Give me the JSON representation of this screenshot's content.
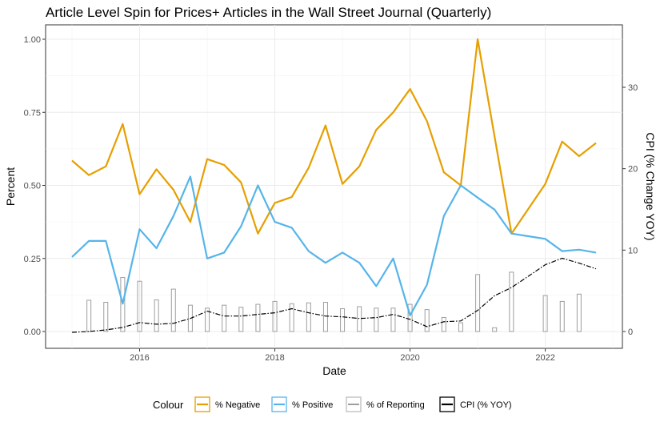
{
  "chart_data": {
    "type": "line",
    "title": "Article Level Spin for Prices+ Articles in the Wall Street Journal (Quarterly)",
    "xlabel": "Date",
    "ylabel": "Percent",
    "y2label": "CPI (% Change YOY)",
    "xlim": [
      2015.0,
      2022.75
    ],
    "ylim": [
      0,
      1
    ],
    "y2lim": [
      0,
      30
    ],
    "x_ticks": [
      "2016",
      "2018",
      "2020",
      "2022"
    ],
    "y_ticks": [
      "0.00",
      "0.25",
      "0.50",
      "0.75",
      "1.00"
    ],
    "y2_ticks": [
      "0",
      "10",
      "20",
      "30"
    ],
    "grid": true,
    "legend_position": "bottom",
    "legend_title": "Colour",
    "x": [
      2015.0,
      2015.25,
      2015.5,
      2015.75,
      2016.0,
      2016.25,
      2016.5,
      2016.75,
      2017.0,
      2017.25,
      2017.5,
      2017.75,
      2018.0,
      2018.25,
      2018.5,
      2018.75,
      2019.0,
      2019.25,
      2019.5,
      2019.75,
      2020.0,
      2020.25,
      2020.5,
      2020.75,
      2021.0,
      2021.25,
      2021.5,
      2021.75,
      2022.0,
      2022.25,
      2022.5,
      2022.75
    ],
    "series": [
      {
        "name": "% Negative",
        "axis": "left",
        "style": "line",
        "color": "#E69F00",
        "values": [
          0.585,
          0.535,
          0.565,
          0.71,
          0.47,
          0.555,
          0.485,
          0.375,
          0.59,
          0.57,
          0.51,
          0.335,
          0.44,
          0.46,
          0.56,
          0.705,
          0.505,
          0.565,
          0.69,
          0.75,
          0.83,
          0.72,
          0.545,
          0.5,
          1.0,
          0.667,
          0.335,
          0.42,
          0.505,
          0.65,
          0.6,
          0.645
        ]
      },
      {
        "name": "% Positive",
        "axis": "left",
        "style": "line",
        "color": "#56B4E9",
        "values": [
          0.255,
          0.31,
          0.31,
          0.095,
          0.35,
          0.285,
          0.395,
          0.53,
          0.25,
          0.27,
          0.36,
          0.5,
          0.375,
          0.355,
          0.275,
          0.235,
          0.27,
          0.235,
          0.155,
          0.25,
          0.055,
          0.16,
          0.395,
          0.5,
          0.458,
          0.417,
          0.335,
          0.326,
          0.317,
          0.275,
          0.28,
          0.27
        ]
      },
      {
        "name": "% of Reporting",
        "axis": "left",
        "style": "bar",
        "color": "#9E9E9E",
        "values": [
          0.0,
          0.107,
          0.1,
          0.185,
          0.172,
          0.108,
          0.145,
          0.09,
          0.08,
          0.09,
          0.083,
          0.093,
          0.103,
          0.095,
          0.098,
          0.1,
          0.078,
          0.085,
          0.08,
          0.08,
          0.093,
          0.075,
          0.048,
          0.03,
          0.195,
          0.013,
          0.203,
          0.0,
          0.123,
          0.103,
          0.128,
          0.0
        ]
      },
      {
        "name": "CPI (% YOY)",
        "axis": "right",
        "style": "dashed",
        "color": "#000000",
        "values": [
          -0.1,
          0.0,
          0.2,
          0.5,
          1.1,
          0.9,
          1.0,
          1.6,
          2.5,
          1.9,
          1.9,
          2.1,
          2.3,
          2.8,
          2.3,
          1.9,
          1.8,
          1.6,
          1.7,
          2.1,
          1.5,
          0.6,
          1.2,
          1.3,
          2.6,
          4.4,
          5.4,
          6.8,
          8.2,
          9.0,
          8.4,
          7.7
        ]
      }
    ]
  }
}
